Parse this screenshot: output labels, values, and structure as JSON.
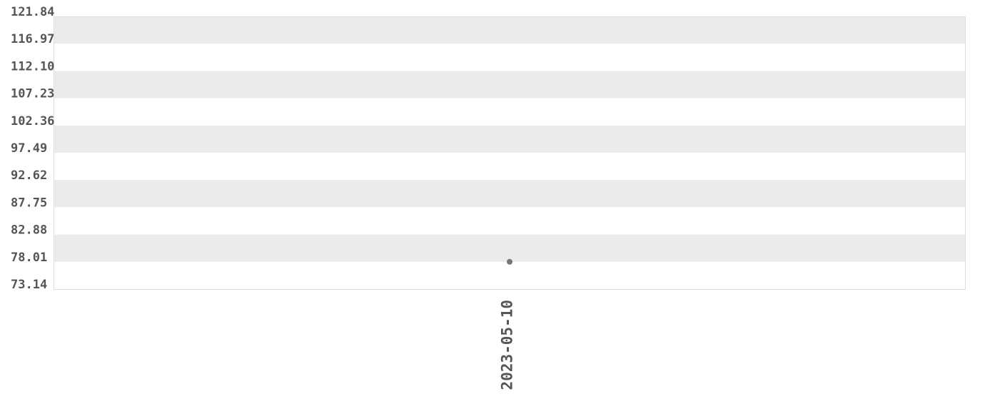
{
  "chart_data": {
    "type": "scatter",
    "title": "",
    "xlabel": "",
    "ylabel": "",
    "x_categories": [
      "2023-05-10"
    ],
    "points": [
      {
        "x": "2023-05-10",
        "y": 78.01
      }
    ],
    "y_ticks": [
      "73.14",
      "78.01",
      "82.88",
      "87.75",
      "92.62",
      "97.49",
      "102.36",
      "107.23",
      "112.10",
      "116.97",
      "121.84"
    ],
    "ylim": [
      73.14,
      121.84
    ],
    "grid": "alternating horizontal bands",
    "colors": {
      "band": "#ebebeb",
      "point": "#777777",
      "text": "#555555",
      "border": "#dddddd"
    }
  }
}
